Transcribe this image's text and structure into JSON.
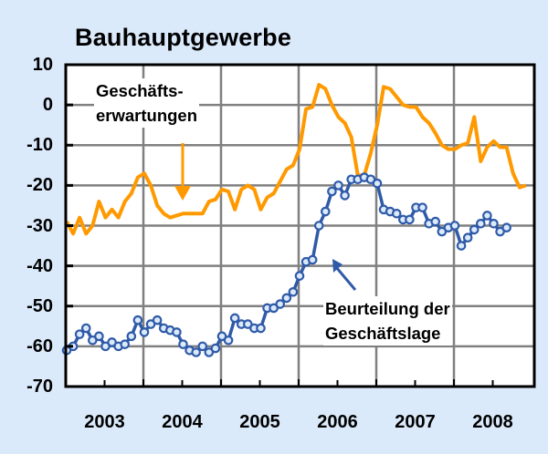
{
  "chart_data": {
    "type": "line",
    "title": "Bauhauptgewerbe",
    "xlabel": "",
    "ylabel": "",
    "ylim": [
      -70,
      10
    ],
    "yticks": [
      10,
      0,
      -10,
      -20,
      -30,
      -40,
      -50,
      -60,
      -70
    ],
    "categories": [
      "2003",
      "2004",
      "2005",
      "2006",
      "2007",
      "2008"
    ],
    "grid": true,
    "legend": "inline annotations with arrows",
    "x_description": "monthly observations, roughly Sep 2002 to Apr 2008",
    "series": [
      {
        "name": "Geschäftserwartungen",
        "color": "#ff9900",
        "marker": "none",
        "values": [
          -29,
          -32,
          -28,
          -32,
          -30,
          -24,
          -28,
          -26,
          -28,
          -24,
          -22,
          -18,
          -17,
          -20,
          -25,
          -27,
          -28,
          -27.5,
          -27,
          -27,
          -27,
          -27,
          -24,
          -23.5,
          -21,
          -21.5,
          -26,
          -21,
          -20,
          -21,
          -26,
          -23,
          -22,
          -19,
          -16,
          -15,
          -11,
          -1,
          -0.5,
          5,
          4,
          0,
          -3,
          -4.5,
          -8,
          -17.5,
          -17.5,
          -12,
          -5,
          4.5,
          4,
          2,
          0,
          -0.5,
          -0.5,
          -3,
          -4.5,
          -7,
          -10,
          -11,
          -11,
          -10,
          -9.5,
          -3,
          -14,
          -10.5,
          -9,
          -10.5,
          -10.5,
          -17,
          -20.5,
          -20
        ]
      },
      {
        "name": "Beurteilung der Geschäftslage",
        "color": "#2f5aa8",
        "marker": "circle",
        "values": [
          -61,
          -60,
          -57,
          -55.5,
          -58.5,
          -57.5,
          -60,
          -59,
          -60,
          -59.5,
          -57.5,
          -53.5,
          -56.5,
          -54.5,
          -53.5,
          -55.5,
          -56,
          -56.5,
          -59.5,
          -61,
          -61.5,
          -60,
          -61.5,
          -60.5,
          -57.5,
          -58.5,
          -53,
          -54.5,
          -54.5,
          -55.5,
          -55.5,
          -50.5,
          -50.5,
          -49.5,
          -48,
          -46.5,
          -42.5,
          -39,
          -38.5,
          -30,
          -26.5,
          -21.5,
          -20,
          -22.5,
          -18.5,
          -18.5,
          -18,
          -18.5,
          -19.5,
          -26,
          -26.5,
          -27,
          -28.5,
          -28.5,
          -25.5,
          -25.5,
          -29.5,
          -29,
          -31.5,
          -30.5,
          -30,
          -35,
          -33,
          -31,
          -29.5,
          -27.5,
          -29.5,
          -31.5,
          -30.5
        ]
      }
    ],
    "annotations": [
      {
        "text": "Geschäfts- erwartungen",
        "series": "Geschäftserwartungen"
      },
      {
        "text": "Beurteilung der Geschäftslage",
        "series": "Beurteilung der Geschäftslage"
      }
    ]
  },
  "ui": {
    "title": "Bauhauptgewerbe",
    "yticks": [
      "10",
      "0",
      "-10",
      "-20",
      "-30",
      "-40",
      "-50",
      "-60",
      "-70"
    ],
    "xticks": [
      "2003",
      "2004",
      "2005",
      "2006",
      "2007",
      "2008"
    ],
    "label_expect_line1": "Geschäfts-",
    "label_expect_line2": "erwartungen",
    "label_state_line1": "Beurteilung der",
    "label_state_line2": "Geschäftslage",
    "colors": {
      "background": "#dbeafb",
      "plot_bg": "#ffffff",
      "grid": "#808080",
      "expectations": "#ff9900",
      "state": "#2f5aa8",
      "marker_fill": "#dbeafb"
    }
  }
}
